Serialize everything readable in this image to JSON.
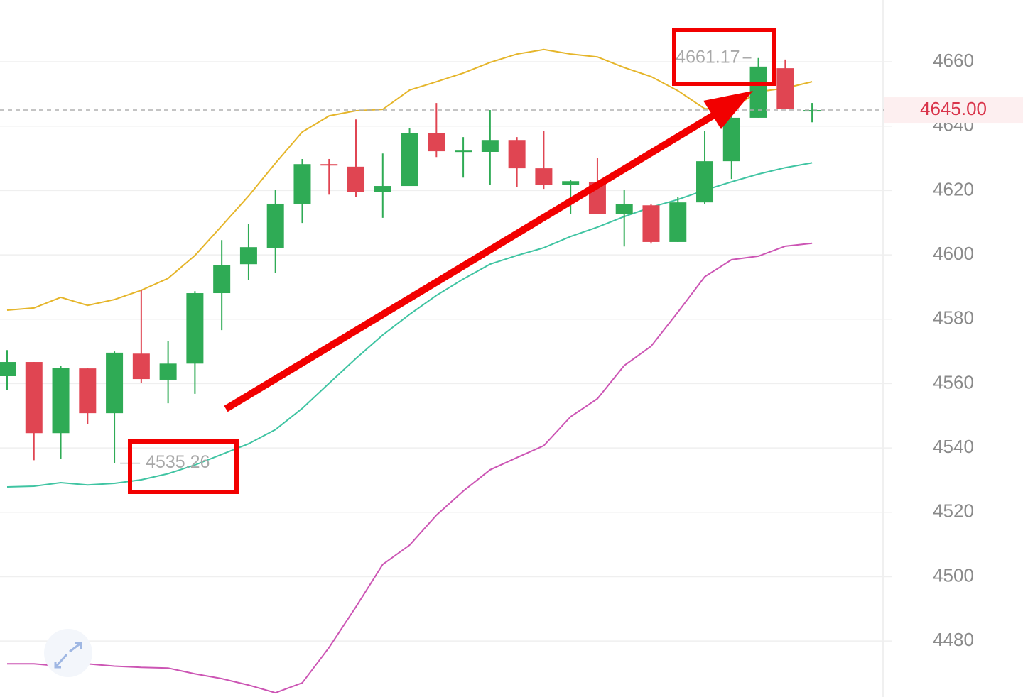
{
  "chart_data": {
    "type": "candlestick",
    "ylim": [
      4462.6,
      4679.2
    ],
    "yticks": [
      4480,
      4500,
      4520,
      4540,
      4560,
      4580,
      4600,
      4620,
      4640,
      4660
    ],
    "grid": true,
    "up_color": "#2fab55",
    "down_color": "#e04552",
    "candles": [
      {
        "open": 4562.3,
        "high": 4570.4,
        "low": 4557.9,
        "close": 4566.7
      },
      {
        "open": 4566.7,
        "high": 4566.7,
        "low": 4536.2,
        "close": 4544.6
      },
      {
        "open": 4544.6,
        "high": 4565.4,
        "low": 4536.7,
        "close": 4564.9
      },
      {
        "open": 4564.7,
        "high": 4564.9,
        "low": 4547.3,
        "close": 4550.8
      },
      {
        "open": 4550.8,
        "high": 4570.0,
        "low": 4535.26,
        "close": 4569.6
      },
      {
        "open": 4569.3,
        "high": 4589.2,
        "low": 4560.1,
        "close": 4561.4
      },
      {
        "open": 4561.2,
        "high": 4573.1,
        "low": 4553.9,
        "close": 4566.2
      },
      {
        "open": 4566.2,
        "high": 4588.7,
        "low": 4556.8,
        "close": 4588.1
      },
      {
        "open": 4588.1,
        "high": 4604.6,
        "low": 4576.6,
        "close": 4596.9
      },
      {
        "open": 4597.1,
        "high": 4609.7,
        "low": 4592.1,
        "close": 4602.4
      },
      {
        "open": 4602.2,
        "high": 4620.3,
        "low": 4594.3,
        "close": 4615.9
      },
      {
        "open": 4615.9,
        "high": 4629.8,
        "low": 4609.9,
        "close": 4628.2
      },
      {
        "open": 4628.2,
        "high": 4629.8,
        "low": 4618.7,
        "close": 4627.8
      },
      {
        "open": 4627.4,
        "high": 4642.1,
        "low": 4618.1,
        "close": 4619.6
      },
      {
        "open": 4619.6,
        "high": 4631.5,
        "low": 4611.5,
        "close": 4621.4
      },
      {
        "open": 4621.4,
        "high": 4639.3,
        "low": 4621.4,
        "close": 4637.9
      },
      {
        "open": 4637.9,
        "high": 4647.2,
        "low": 4630.4,
        "close": 4632.2
      },
      {
        "open": 4632.0,
        "high": 4636.6,
        "low": 4624.0,
        "close": 4632.4
      },
      {
        "open": 4632.0,
        "high": 4645.0,
        "low": 4621.8,
        "close": 4635.7
      },
      {
        "open": 4635.7,
        "high": 4636.6,
        "low": 4621.2,
        "close": 4626.9
      },
      {
        "open": 4626.9,
        "high": 4638.4,
        "low": 4620.5,
        "close": 4621.8
      },
      {
        "open": 4621.8,
        "high": 4623.4,
        "low": 4612.6,
        "close": 4622.9
      },
      {
        "open": 4622.7,
        "high": 4630.2,
        "low": 4612.8,
        "close": 4612.8
      },
      {
        "open": 4612.8,
        "high": 4620.1,
        "low": 4602.6,
        "close": 4615.7
      },
      {
        "open": 4615.4,
        "high": 4615.9,
        "low": 4603.5,
        "close": 4604.0
      },
      {
        "open": 4604.0,
        "high": 4618.1,
        "low": 4604.0,
        "close": 4616.3
      },
      {
        "open": 4616.3,
        "high": 4638.4,
        "low": 4615.9,
        "close": 4629.1
      },
      {
        "open": 4629.1,
        "high": 4645.0,
        "low": 4623.6,
        "close": 4642.6
      },
      {
        "open": 4642.6,
        "high": 4661.17,
        "low": 4642.6,
        "close": 4658.5
      },
      {
        "open": 4658.0,
        "high": 4660.7,
        "low": 4645.4,
        "close": 4645.4
      },
      {
        "open": 4645.0,
        "high": 4647.2,
        "low": 4641.2,
        "close": 4645.0
      }
    ],
    "lines": [
      {
        "color": "#e5b52a",
        "values": [
          4582.8,
          4583.5,
          4586.8,
          4584.3,
          4586.1,
          4589.0,
          4592.7,
          4599.8,
          4609.0,
          4618.3,
          4628.5,
          4638.2,
          4643.2,
          4644.8,
          4645.2,
          4651.2,
          4653.8,
          4656.5,
          4659.8,
          4662.4,
          4663.8,
          4662.4,
          4661.5,
          4658.2,
          4655.4,
          4651.0,
          4645.4,
          4645.4,
          4650.7,
          4651.8,
          4653.8
        ]
      },
      {
        "color": "#3fc4a2",
        "values": [
          4527.9,
          4528.1,
          4529.2,
          4528.5,
          4529.0,
          4530.1,
          4532.0,
          4534.7,
          4538.0,
          4541.3,
          4545.7,
          4552.3,
          4560.1,
          4567.8,
          4575.1,
          4581.5,
          4587.4,
          4592.5,
          4597.1,
          4599.8,
          4602.2,
          4605.7,
          4608.6,
          4611.9,
          4614.8,
          4617.2,
          4620.1,
          4622.7,
          4625.1,
          4627.1,
          4628.6
        ]
      },
      {
        "color": "#cc55b4",
        "values": [
          4472.9,
          4472.9,
          4472.2,
          4472.9,
          4472.2,
          4471.8,
          4471.6,
          4469.8,
          4468.3,
          4466.3,
          4463.9,
          4467.0,
          4478.0,
          4490.6,
          4503.8,
          4509.8,
          4519.1,
          4526.6,
          4533.2,
          4537.0,
          4540.7,
          4549.7,
          4555.3,
          4565.6,
          4571.6,
          4582.2,
          4593.2,
          4598.5,
          4599.6,
          4602.7,
          4603.6
        ]
      }
    ],
    "high_label": 4661.17,
    "low_label": 4535.26,
    "last_price": {
      "value": 4645,
      "label": "4645.00"
    },
    "last_price_color": "#d9344a"
  }
}
